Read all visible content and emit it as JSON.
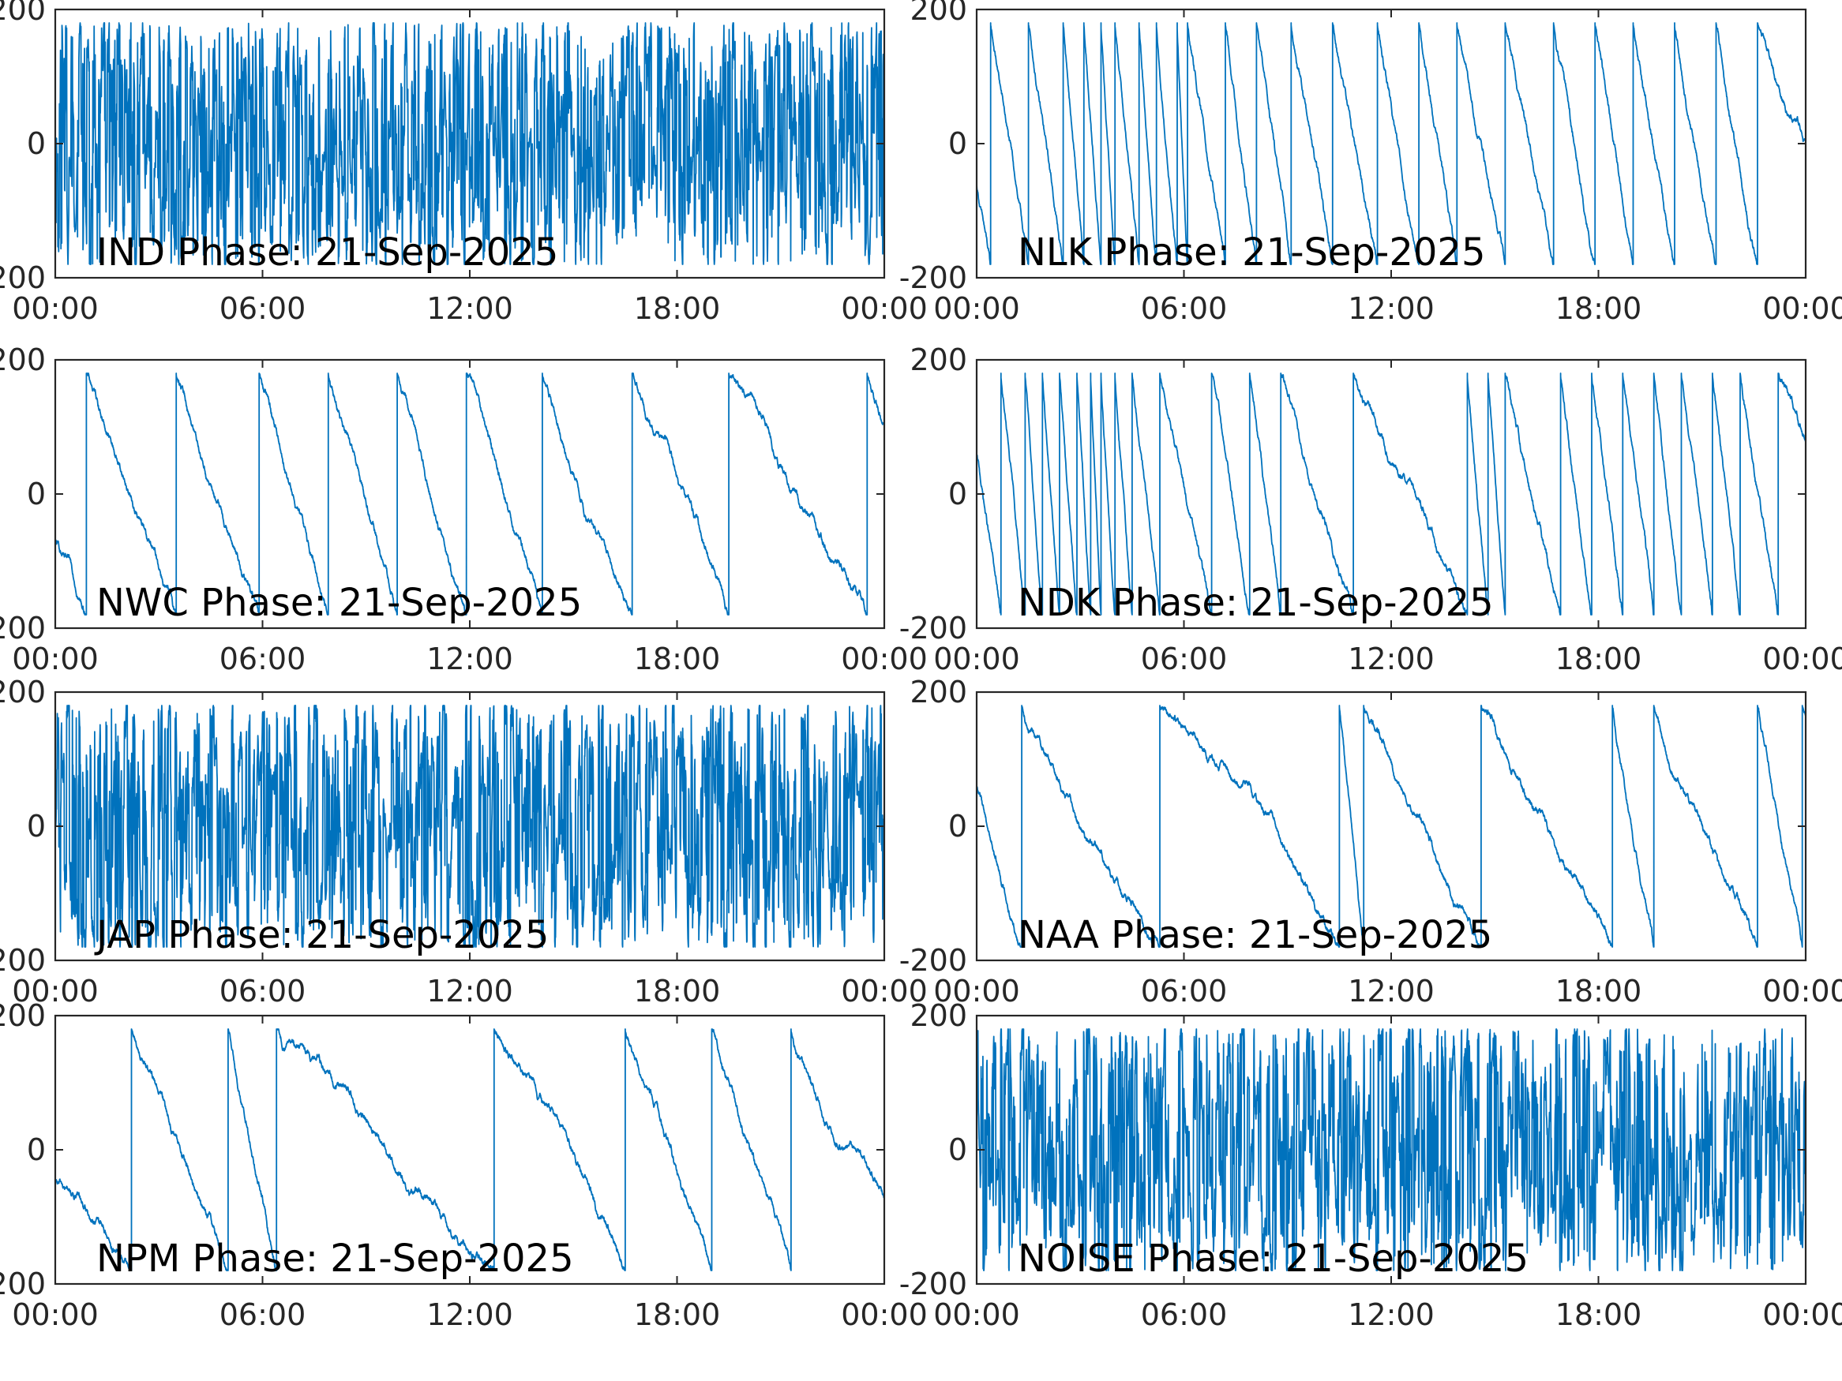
{
  "chart_data": [
    {
      "type": "line",
      "label": "IND Phase: 21-Sep-2025",
      "ylim": [
        -200,
        200
      ],
      "yticks": [
        -200,
        0,
        200
      ],
      "ytick_labels": [
        "-200",
        "0",
        "200"
      ],
      "xticks": [
        "00:00",
        "06:00",
        "12:00",
        "18:00",
        "00:00"
      ],
      "xlim_hours": [
        0,
        24
      ],
      "series_color": "#0072BD",
      "behaviour": "dense",
      "wraps_hours": []
    },
    {
      "type": "line",
      "label": "NLK Phase: 21-Sep-2025",
      "ylim": [
        -200,
        200
      ],
      "yticks": [
        -200,
        0,
        200
      ],
      "ytick_labels": [
        "-200",
        "0",
        "200"
      ],
      "xticks": [
        "00:00",
        "06:00",
        "12:00",
        "18:00",
        "00:00"
      ],
      "xlim_hours": [
        0,
        24
      ],
      "series_color": "#0072BD",
      "behaviour": "sawtooth",
      "start_value": -60,
      "wraps_hours": [
        0.4,
        1.5,
        2.5,
        3.1,
        3.6,
        4.0,
        4.7,
        5.2,
        5.8,
        6.1,
        7.2,
        8.1,
        9.1,
        10.3,
        11.6,
        12.8,
        13.9,
        15.3,
        16.7,
        17.9,
        19.0,
        20.2,
        21.4,
        22.6
      ]
    },
    {
      "type": "line",
      "label": "NWC Phase: 21-Sep-2025",
      "ylim": [
        -200,
        200
      ],
      "yticks": [
        -200,
        0,
        200
      ],
      "ytick_labels": [
        "-200",
        "0",
        "200"
      ],
      "xticks": [
        "00:00",
        "06:00",
        "12:00",
        "18:00",
        "00:00"
      ],
      "xlim_hours": [
        0,
        24
      ],
      "series_color": "#0072BD",
      "behaviour": "sawtooth",
      "start_value": -70,
      "wraps_hours": [
        0.9,
        3.5,
        5.9,
        7.9,
        9.9,
        11.9,
        14.1,
        16.7,
        19.5,
        23.5
      ]
    },
    {
      "type": "line",
      "label": "NDK Phase: 21-Sep-2025",
      "ylim": [
        -200,
        200
      ],
      "yticks": [
        -200,
        0,
        200
      ],
      "ytick_labels": [
        "-200",
        "0",
        "200"
      ],
      "xticks": [
        "00:00",
        "06:00",
        "12:00",
        "18:00",
        "00:00"
      ],
      "xlim_hours": [
        0,
        24
      ],
      "series_color": "#0072BD",
      "behaviour": "sawtooth",
      "start_value": 60,
      "wraps_hours": [
        0.7,
        1.4,
        1.9,
        2.4,
        2.9,
        3.3,
        3.6,
        4.0,
        4.5,
        5.3,
        6.8,
        7.9,
        8.8,
        10.9,
        14.2,
        14.8,
        15.3,
        16.9,
        17.8,
        18.7,
        19.6,
        20.4,
        21.3,
        22.1,
        23.2
      ]
    },
    {
      "type": "line",
      "label": "JAP Phase: 21-Sep-2025",
      "ylim": [
        -200,
        200
      ],
      "yticks": [
        -200,
        0,
        200
      ],
      "ytick_labels": [
        "-200",
        "0",
        "200"
      ],
      "xticks": [
        "00:00",
        "06:00",
        "12:00",
        "18:00",
        "00:00"
      ],
      "xlim_hours": [
        0,
        24
      ],
      "series_color": "#0072BD",
      "behaviour": "dense",
      "wraps_hours": []
    },
    {
      "type": "line",
      "label": "NAA Phase: 21-Sep-2025",
      "ylim": [
        -200,
        200
      ],
      "yticks": [
        -200,
        0,
        200
      ],
      "ytick_labels": [
        "-200",
        "0",
        "200"
      ],
      "xticks": [
        "00:00",
        "06:00",
        "12:00",
        "18:00",
        "00:00"
      ],
      "xlim_hours": [
        0,
        24
      ],
      "series_color": "#0072BD",
      "behaviour": "sawtooth",
      "start_value": 60,
      "wraps_hours": [
        1.3,
        5.3,
        10.5,
        11.2,
        14.6,
        18.4,
        19.6,
        22.6,
        23.9
      ]
    },
    {
      "type": "line",
      "label": "NPM Phase: 21-Sep-2025",
      "ylim": [
        -200,
        200
      ],
      "yticks": [
        -200,
        0,
        200
      ],
      "ytick_labels": [
        "-200",
        "0",
        "200"
      ],
      "xticks": [
        "00:00",
        "06:00",
        "12:00",
        "18:00",
        "00:00"
      ],
      "xlim_hours": [
        0,
        24
      ],
      "series_color": "#0072BD",
      "behaviour": "sawtooth",
      "start_value": -50,
      "wraps_hours": [
        2.2,
        5.0,
        6.4,
        12.7,
        16.5,
        19.0,
        21.3
      ]
    },
    {
      "type": "line",
      "label": "NOISE Phase: 21-Sep-2025",
      "ylim": [
        -200,
        200
      ],
      "yticks": [
        -200,
        0,
        200
      ],
      "ytick_labels": [
        "-200",
        "0",
        "200"
      ],
      "xticks": [
        "00:00",
        "06:00",
        "12:00",
        "18:00",
        "00:00"
      ],
      "xlim_hours": [
        0,
        24
      ],
      "series_color": "#0072BD",
      "behaviour": "dense",
      "wraps_hours": []
    }
  ]
}
